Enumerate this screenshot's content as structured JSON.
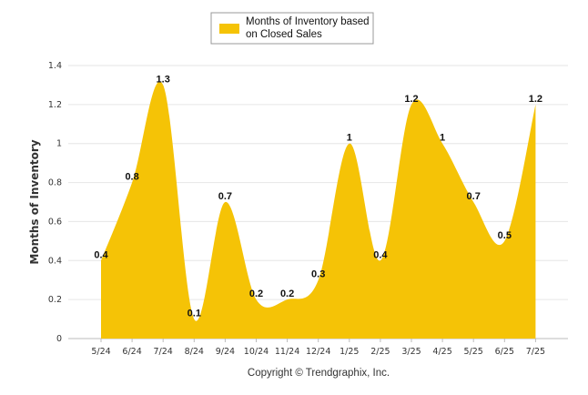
{
  "chart_data": {
    "type": "area",
    "categories": [
      "5/24",
      "6/24",
      "7/24",
      "8/24",
      "9/24",
      "10/24",
      "11/24",
      "12/24",
      "1/25",
      "2/25",
      "3/25",
      "4/25",
      "5/25",
      "6/25",
      "7/25"
    ],
    "series": [
      {
        "name": "Months of Inventory based on Closed Sales",
        "values": [
          0.4,
          0.8,
          1.3,
          0.1,
          0.7,
          0.2,
          0.2,
          0.3,
          1,
          0.4,
          1.2,
          1,
          0.7,
          0.5,
          1.2
        ],
        "labels": [
          "0.4",
          "0.8",
          "1.3",
          "0.1",
          "0.7",
          "0.2",
          "0.2",
          "0.3",
          "1",
          "0.4",
          "1.2",
          "1",
          "0.7",
          "0.5",
          "1.2"
        ],
        "color": "#f5c306"
      }
    ],
    "legend_lines": [
      "Months of Inventory based",
      "on Closed Sales"
    ],
    "ylabel": "Months of Inventory",
    "yticks": [
      "0",
      "0.2",
      "0.4",
      "0.6",
      "0.8",
      "1",
      "1.2",
      "1.4"
    ],
    "ylim": [
      0,
      1.4
    ],
    "grid": true,
    "legend_position": "top-center",
    "credit": "Copyright © Trendgraphix, Inc."
  }
}
